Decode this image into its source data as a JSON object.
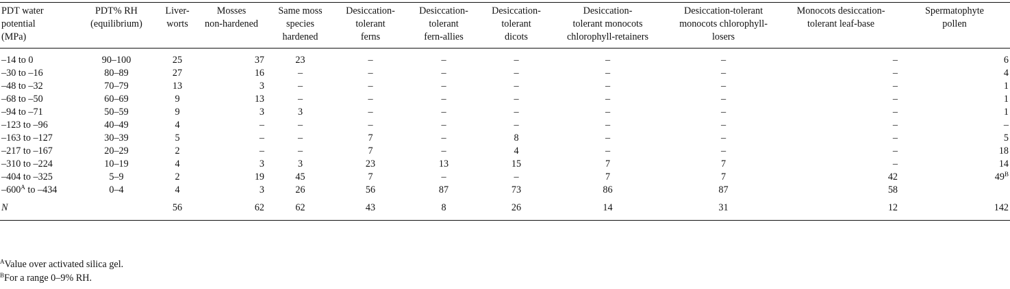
{
  "columns": [
    "PDT water potential (MPa)",
    "PDT% RH (equilibrium)",
    "Liver-worts",
    "Mosses non-hardened",
    "Same moss species hardened",
    "Desiccation-tolerant ferns",
    "Desiccation-tolerant fern-allies",
    "Desiccation-tolerant dicots",
    "Desiccation-tolerant monocots chlorophyll-retainers",
    "Desiccation-tolerant monocots chlorophyll-losers",
    "Monocots desiccation-tolerant leaf-base",
    "Spermatophyte pollen"
  ],
  "header_lines": [
    [
      "PDT water",
      "potential",
      "(MPa)"
    ],
    [
      "PDT% RH",
      "(equilibrium)"
    ],
    [
      "Liver-",
      "worts"
    ],
    [
      "Mosses",
      "non-hardened"
    ],
    [
      "Same moss",
      "species",
      "hardened"
    ],
    [
      "Desiccation-",
      "tolerant",
      "ferns"
    ],
    [
      "Desiccation-",
      "tolerant",
      "fern-allies"
    ],
    [
      "Desiccation-",
      "tolerant",
      "dicots"
    ],
    [
      "Desiccation-",
      "tolerant monocots",
      "chlorophyll-retainers"
    ],
    [
      "Desiccation-tolerant",
      "monocots chlorophyll-",
      "losers"
    ],
    [
      "Monocots desiccation-",
      "tolerant leaf-base"
    ],
    [
      "Spermatophyte",
      "pollen"
    ]
  ],
  "rows": [
    {
      "wp": "–14 to 0",
      "rh": "90–100",
      "v": [
        "25",
        "37",
        "23",
        "–",
        "–",
        "–",
        "–",
        "–",
        "–",
        "6"
      ]
    },
    {
      "wp": "–30 to –16",
      "rh": "80–89",
      "v": [
        "27",
        "16",
        "–",
        "–",
        "–",
        "–",
        "–",
        "–",
        "–",
        "4"
      ]
    },
    {
      "wp": "–48 to –32",
      "rh": "70–79",
      "v": [
        "13",
        "3",
        "–",
        "–",
        "–",
        "–",
        "–",
        "–",
        "–",
        "1"
      ]
    },
    {
      "wp": "–68 to –50",
      "rh": "60–69",
      "v": [
        "9",
        "13",
        "–",
        "–",
        "–",
        "–",
        "–",
        "–",
        "–",
        "1"
      ]
    },
    {
      "wp": "–94 to –71",
      "rh": "50–59",
      "v": [
        "9",
        "3",
        "3",
        "–",
        "–",
        "–",
        "–",
        "–",
        "–",
        "1"
      ]
    },
    {
      "wp": "–123 to –96",
      "rh": "40–49",
      "v": [
        "4",
        "–",
        "–",
        "–",
        "–",
        "–",
        "–",
        "–",
        "–",
        "–"
      ]
    },
    {
      "wp": "–163 to –127",
      "rh": "30–39",
      "v": [
        "5",
        "–",
        "–",
        "7",
        "–",
        "8",
        "–",
        "–",
        "–",
        "5"
      ]
    },
    {
      "wp": "–217 to –167",
      "rh": "20–29",
      "v": [
        "2",
        "–",
        "–",
        "7",
        "–",
        "4",
        "–",
        "–",
        "–",
        "18"
      ]
    },
    {
      "wp": "–310 to –224",
      "rh": "10–19",
      "v": [
        "4",
        "3",
        "3",
        "23",
        "13",
        "15",
        "7",
        "7",
        "–",
        "14"
      ]
    },
    {
      "wp": "–404 to –325",
      "rh": "5–9",
      "v": [
        "2",
        "19",
        "45",
        "7",
        "–",
        "–",
        "7",
        "7",
        "42",
        "49"
      ],
      "last_sup": "B"
    },
    {
      "wp_pre": "–600",
      "wp_sup": "A",
      "wp_post": " to –434",
      "rh": "0–4",
      "v": [
        "4",
        "3",
        "26",
        "56",
        "87",
        "73",
        "86",
        "87",
        "58",
        ""
      ]
    }
  ],
  "n_row": {
    "label": "N",
    "v": [
      "56",
      "62",
      "62",
      "43",
      "8",
      "26",
      "14",
      "31",
      "12",
      "142"
    ]
  },
  "footnotes": [
    {
      "mark": "A",
      "text": "Value over activated silica gel."
    },
    {
      "mark": "B",
      "text": "For a range 0–9% RH."
    }
  ]
}
